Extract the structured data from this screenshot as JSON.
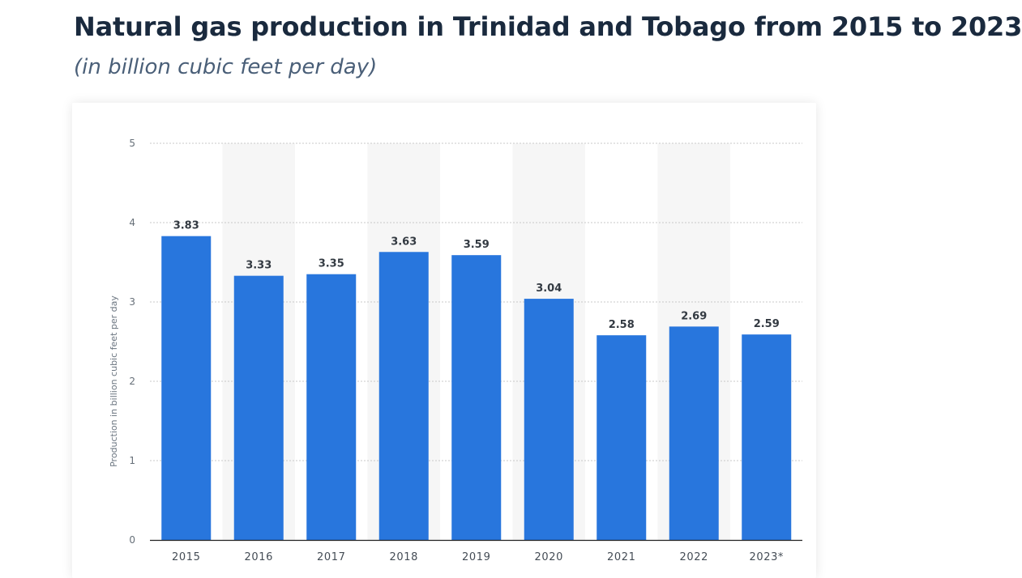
{
  "header": {
    "title": "Natural gas production in Trinidad and Tobago from 2015 to 2023",
    "subtitle": "(in billion cubic feet per day)"
  },
  "chart_data": {
    "type": "bar",
    "title": "Natural gas production in Trinidad and Tobago from 2015 to 2023",
    "subtitle": "(in billion cubic feet per day)",
    "xlabel": "",
    "ylabel": "Production in billion cubic feet per day",
    "categories": [
      "2015",
      "2016",
      "2017",
      "2018",
      "2019",
      "2020",
      "2021",
      "2022",
      "2023*"
    ],
    "values": [
      3.83,
      3.33,
      3.35,
      3.63,
      3.59,
      3.04,
      2.58,
      2.69,
      2.59
    ],
    "data_labels": [
      "3.83",
      "3.33",
      "3.35",
      "3.63",
      "3.59",
      "3.04",
      "2.58",
      "2.69",
      "2.59"
    ],
    "ylim": [
      0,
      5
    ],
    "yticks": [
      0,
      1,
      2,
      3,
      4,
      5
    ],
    "grid": true,
    "legend": "none",
    "colors": {
      "bar": "#2876dd",
      "band": "#f6f6f6",
      "grid": "#c8c8c8",
      "axis": "#222222"
    }
  }
}
